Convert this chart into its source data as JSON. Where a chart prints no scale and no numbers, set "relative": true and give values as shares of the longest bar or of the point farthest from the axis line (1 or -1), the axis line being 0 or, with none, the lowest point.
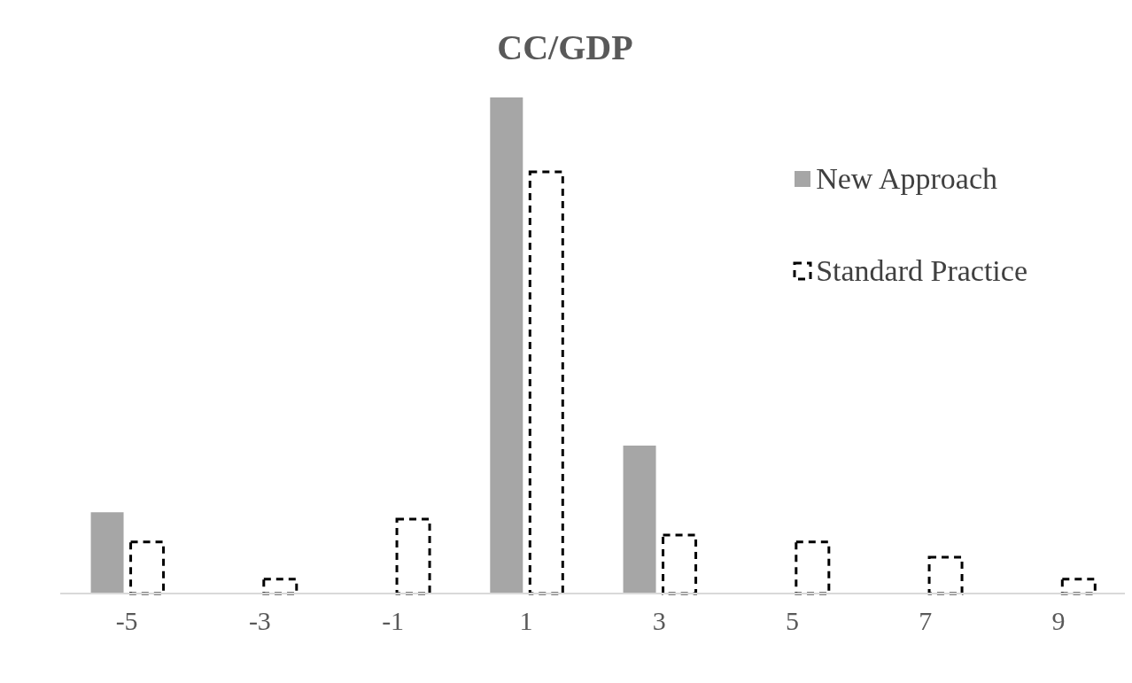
{
  "chart_data": {
    "type": "bar",
    "title": "CC/GDP",
    "relative": true,
    "legend": "top right",
    "grid": false,
    "categories": [
      "-5",
      "-3",
      "-1",
      "1",
      "3",
      "5",
      "7",
      "9"
    ],
    "series": [
      {
        "name": "New Approach",
        "color": "#a6a6a6",
        "values": [
          0.164,
          0,
          0,
          1,
          0.298,
          0,
          0,
          0
        ]
      },
      {
        "name": "Standard Practice",
        "color": "#000000",
        "line_style": "dashed",
        "values": [
          0.104,
          0.029,
          0.15,
          0.85,
          0.118,
          0.104,
          0.073,
          0.029
        ]
      }
    ]
  }
}
